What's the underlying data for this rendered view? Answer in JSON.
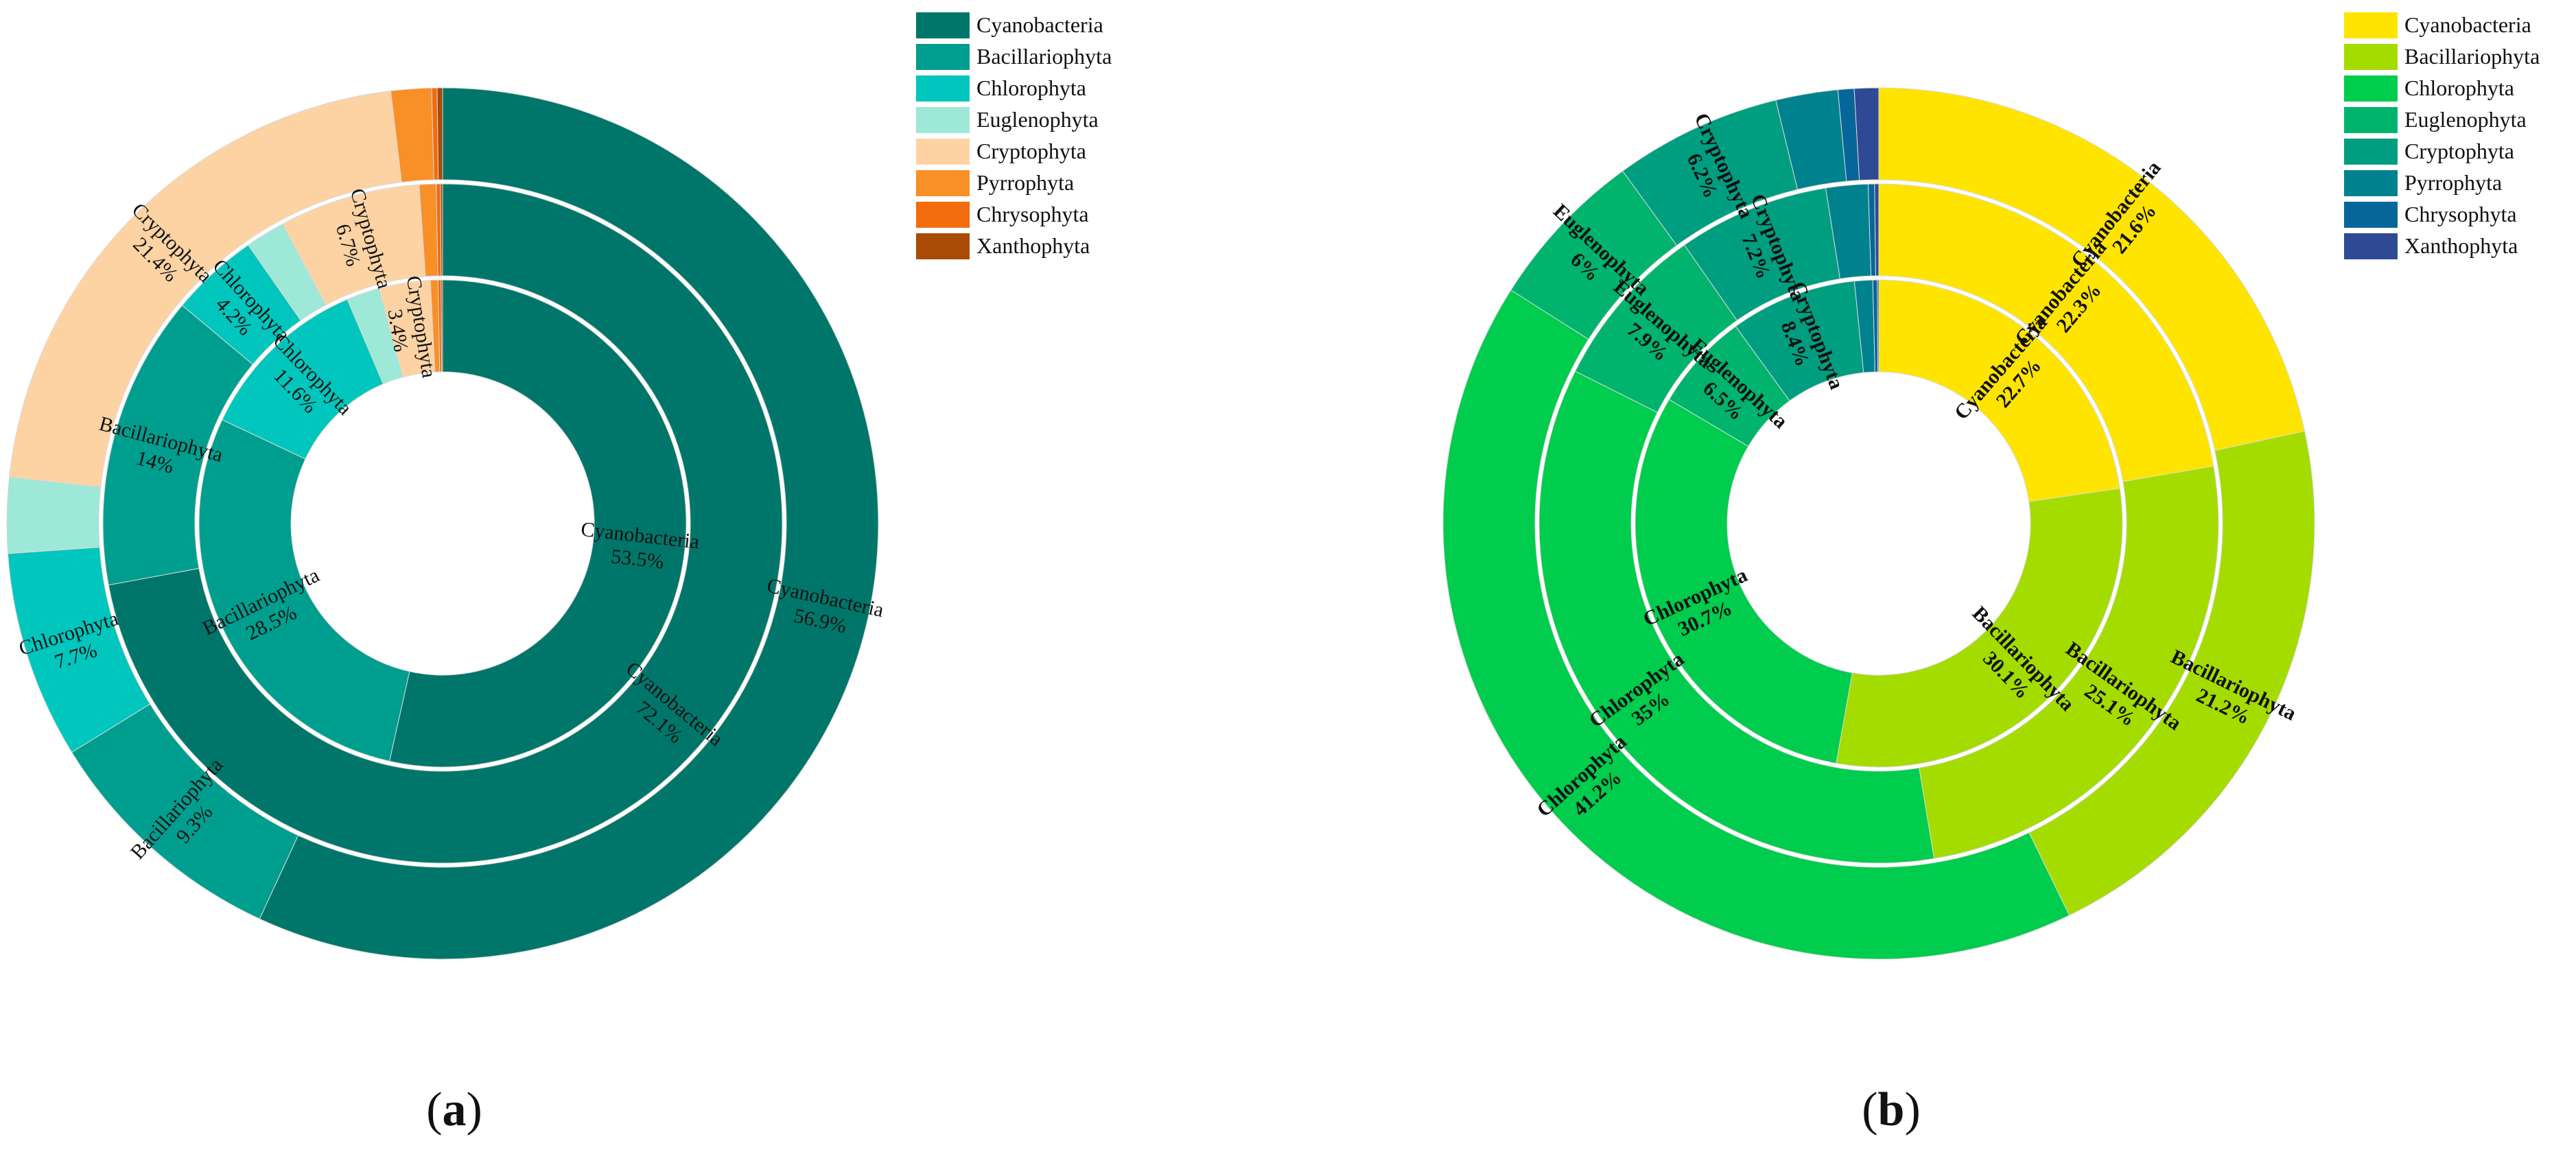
{
  "figure": {
    "panels": [
      "a",
      "b"
    ]
  },
  "chart_data": [
    {
      "type": "pie",
      "subtype": "multi-ring donut",
      "panel_label": "a",
      "categories": [
        "Cyanobacteria",
        "Bacillariophyta",
        "Chlorophyta",
        "Euglenophyta",
        "Cryptophyta",
        "Pyrrophyta",
        "Chrysophyta",
        "Xanthophyta"
      ],
      "colors": [
        "#00766b",
        "#009e8e",
        "#00c6bd",
        "#9ee8d7",
        "#fdd3a4",
        "#f98f27",
        "#f26b0d",
        "#a94a06"
      ],
      "label_bold": false,
      "legend": {
        "position": "top-right",
        "entries": [
          "Cyanobacteria",
          "Bacillariophyta",
          "Chlorophyta",
          "Euglenophyta",
          "Cryptophyta",
          "Pyrrophyta",
          "Chrysophyta",
          "Xanthophyta"
        ]
      },
      "rings": [
        {
          "name": "inner",
          "values": [
            53.5,
            28.5,
            11.6,
            2.2,
            3.4,
            0.5,
            0.2,
            0.1
          ],
          "labels": [
            [
              "Cyanobacteria",
              "53.5%"
            ],
            [
              "Bacillariophyta",
              "28.5%"
            ],
            [
              "Chlorophyta",
              "11.6%"
            ],
            null,
            [
              "Cryptophyta",
              "3.4%"
            ],
            null,
            null,
            null
          ]
        },
        {
          "name": "middle",
          "values": [
            72.1,
            14,
            4.2,
            1.9,
            6.7,
            0.8,
            0.2,
            0.1
          ],
          "labels": [
            [
              "Cyanobacteria",
              "72.1%"
            ],
            [
              "Bacillariophyta",
              "14%"
            ],
            [
              "Chlorophyta",
              "4.2%"
            ],
            null,
            [
              "Cryptophyta",
              "6.7%"
            ],
            null,
            null,
            null
          ]
        },
        {
          "name": "outer",
          "values": [
            56.9,
            9.3,
            7.7,
            2.8,
            21.4,
            1.5,
            0.2,
            0.2
          ],
          "labels": [
            [
              "Cyanobacteria",
              "56.9%"
            ],
            [
              "Bacillariophyta",
              "9.3%"
            ],
            [
              "Chlorophyta",
              "7.7%"
            ],
            null,
            [
              "Cryptophyta",
              "21.4%"
            ],
            null,
            null,
            null
          ]
        }
      ]
    },
    {
      "type": "pie",
      "subtype": "multi-ring donut",
      "panel_label": "b",
      "categories": [
        "Cyanobacteria",
        "Bacillariophyta",
        "Chlorophyta",
        "Euglenophyta",
        "Cryptophyta",
        "Pyrrophyta",
        "Chrysophyta",
        "Xanthophyta"
      ],
      "colors": [
        "#ffe400",
        "#a4dc00",
        "#00cc4d",
        "#00b46d",
        "#009e80",
        "#00818e",
        "#06669a",
        "#2f4a94"
      ],
      "label_bold": true,
      "legend": {
        "position": "top-right",
        "entries": [
          "Cyanobacteria",
          "Bacillariophyta",
          "Chlorophyta",
          "Euglenophyta",
          "Cryptophyta",
          "Pyrrophyta",
          "Chrysophyta",
          "Xanthophyta"
        ]
      },
      "rings": [
        {
          "name": "inner",
          "values": [
            22.7,
            30.1,
            30.7,
            6.5,
            8.4,
            1.2,
            0.3,
            0.1
          ],
          "labels": [
            [
              "Cyanobacteria",
              "22.7%"
            ],
            [
              "Bacillariophyta",
              "30.1%"
            ],
            [
              "Chlorophyta",
              "30.7%"
            ],
            [
              "Euglenophyta",
              "6.5%"
            ],
            [
              "Cryptophyta",
              "8.4%"
            ],
            null,
            null,
            null
          ]
        },
        {
          "name": "middle",
          "values": [
            22.3,
            25.1,
            35,
            7.9,
            7.2,
            2.0,
            0.3,
            0.2
          ],
          "labels": [
            [
              "Cyanobacteria",
              "22.3%"
            ],
            [
              "Bacillariophyta",
              "25.1%"
            ],
            [
              "Chlorophyta",
              "35%"
            ],
            [
              "Euglenophyta",
              "7.9%"
            ],
            [
              "Cryptophyta",
              "7.2%"
            ],
            null,
            null,
            null
          ]
        },
        {
          "name": "outer",
          "values": [
            21.6,
            21.2,
            41.2,
            6,
            6.2,
            2.3,
            0.6,
            0.9
          ],
          "labels": [
            [
              "Cyanobacteria",
              "21.6%"
            ],
            [
              "Bacillariophyta",
              "21.2%"
            ],
            [
              "Chlorophyta",
              "41.2%"
            ],
            [
              "Euglenophyta",
              "6%"
            ],
            [
              "Cryptophyta",
              "6.2%"
            ],
            null,
            null,
            null
          ]
        }
      ]
    }
  ]
}
